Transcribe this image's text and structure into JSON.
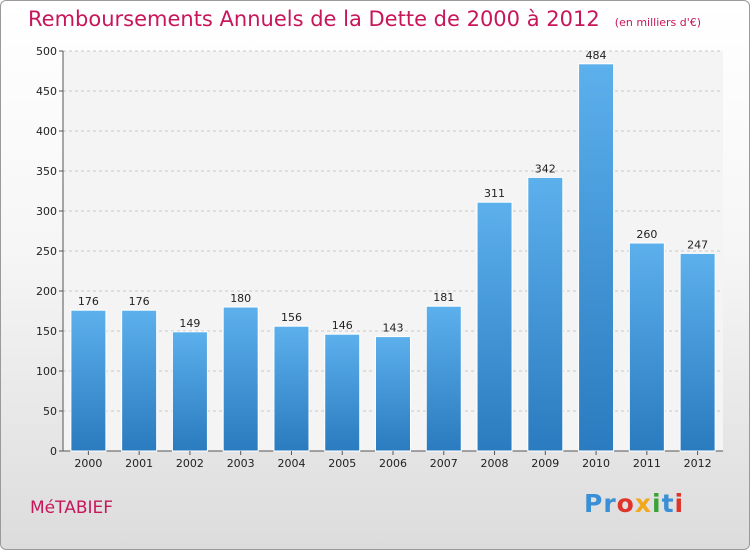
{
  "header": {
    "title": "Remboursements Annuels de la Dette de 2000 à 2012",
    "unit": "(en milliers d'€)"
  },
  "footer": {
    "commune": "MéTABIEF",
    "logo_letters": [
      "P",
      "r",
      "o",
      "x",
      "i",
      "t",
      "i"
    ],
    "logo_colors": [
      "#3a8fd6",
      "#3a8fd6",
      "#e0342a",
      "#f2a81d",
      "#3aa335",
      "#3a8fd6",
      "#e0342a"
    ]
  },
  "colors": {
    "bar_top": "#5cb0ec",
    "bar_bottom": "#2a7bbf",
    "accent": "#c8165a"
  },
  "chart_data": {
    "type": "bar",
    "title": "Remboursements Annuels de la Dette de 2000 à 2012",
    "subtitle": "(en milliers d'€)",
    "categories": [
      "2000",
      "2001",
      "2002",
      "2003",
      "2004",
      "2005",
      "2006",
      "2007",
      "2008",
      "2009",
      "2010",
      "2011",
      "2012"
    ],
    "values": [
      176,
      176,
      149,
      180,
      156,
      146,
      143,
      181,
      311,
      342,
      484,
      260,
      247
    ],
    "ylim": [
      0,
      500
    ],
    "yticks": [
      0,
      50,
      100,
      150,
      200,
      250,
      300,
      350,
      400,
      450,
      500
    ],
    "grid": true
  }
}
